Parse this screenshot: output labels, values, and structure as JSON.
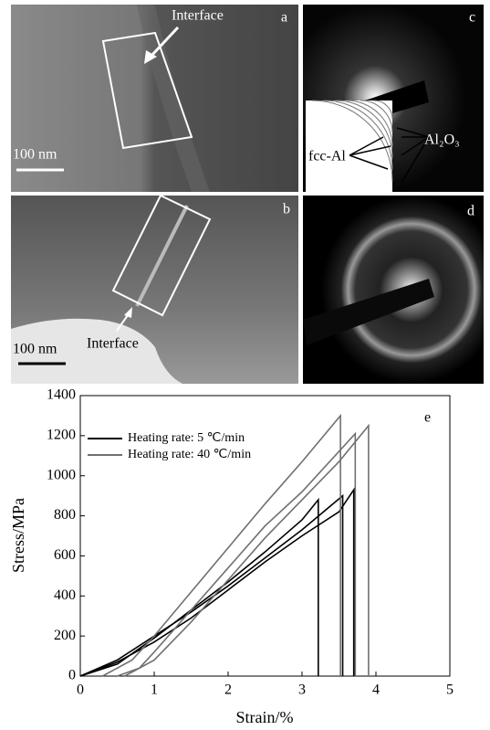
{
  "panels": {
    "a": {
      "label": "a",
      "annotation": "Interface",
      "scale_bar": "100 nm"
    },
    "b": {
      "label": "b",
      "annotation": "Interface",
      "scale_bar": "100 nm"
    },
    "c": {
      "label": "c",
      "left_label": "fcc-Al",
      "right_label": "Al₂O₃"
    },
    "d": {
      "label": "d"
    }
  },
  "chart_data": {
    "type": "line",
    "panel_label": "e",
    "x_label": "Strain/%",
    "y_label": "Stress/MPa",
    "xlim": [
      0,
      5
    ],
    "ylim": [
      0,
      1400
    ],
    "xticks": [
      0,
      1,
      2,
      3,
      4,
      5
    ],
    "yticks": [
      0,
      200,
      400,
      600,
      800,
      1000,
      1200,
      1400
    ],
    "legend": "upper left",
    "series": [
      {
        "name": "Heating rate: 5 ℃/min",
        "color": "#000000",
        "curves": [
          {
            "x": [
              0,
              0.5,
              1,
              1.5,
              2,
              2.5,
              3,
              3.22,
              3.22
            ],
            "values": [
              0,
              60,
              190,
              330,
              470,
              620,
              780,
              880,
              0
            ]
          },
          {
            "x": [
              0,
              0.5,
              1,
              1.5,
              2,
              2.5,
              3,
              3.55,
              3.55
            ],
            "values": [
              0,
              80,
              200,
              320,
              450,
              590,
              730,
              900,
              0
            ]
          },
          {
            "x": [
              0,
              0.5,
              1,
              1.5,
              2,
              2.5,
              3,
              3.5,
              3.7,
              3.7
            ],
            "values": [
              0,
              70,
              170,
              290,
              430,
              570,
              700,
              820,
              930,
              0
            ]
          }
        ]
      },
      {
        "name": "Heating rate: 40 ℃/min",
        "color": "#707070",
        "curves": [
          {
            "x": [
              0.3,
              0.7,
              1,
              1.5,
              2,
              2.5,
              3,
              3.52,
              3.52
            ],
            "values": [
              0,
              80,
              200,
              420,
              640,
              860,
              1070,
              1300,
              0
            ]
          },
          {
            "x": [
              0.5,
              0.8,
              1,
              1.5,
              2,
              2.5,
              3,
              3.72,
              3.72
            ],
            "values": [
              0,
              40,
              120,
              330,
              540,
              750,
              920,
              1210,
              0
            ]
          },
          {
            "x": [
              0.6,
              1,
              1.5,
              2,
              2.5,
              3,
              3.5,
              3.9,
              3.9
            ],
            "values": [
              0,
              80,
              270,
              480,
              690,
              880,
              1070,
              1250,
              0
            ]
          }
        ]
      }
    ]
  }
}
